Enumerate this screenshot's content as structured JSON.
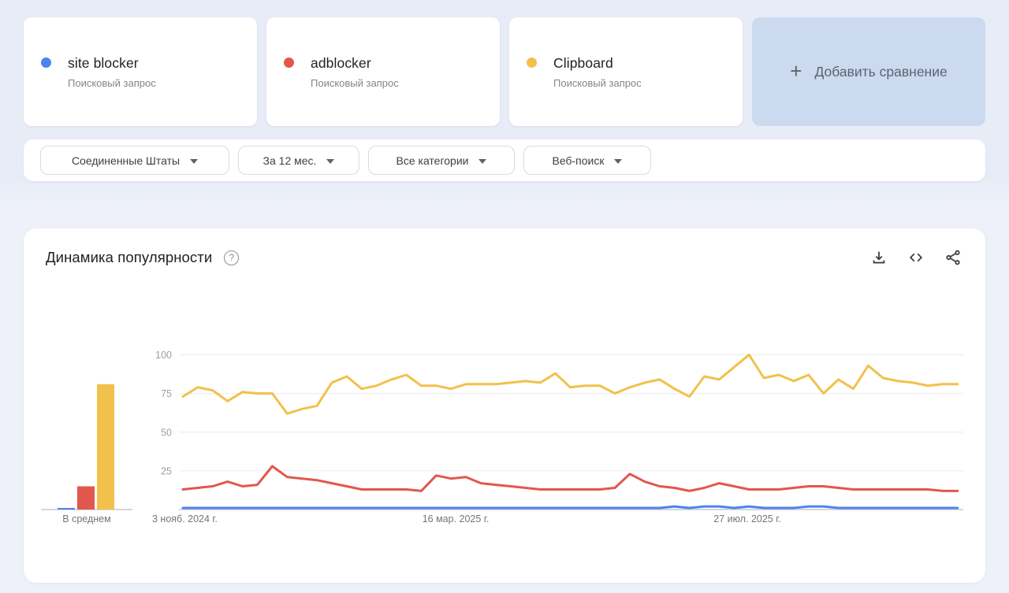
{
  "colors": {
    "blue": "#4c84ee",
    "red": "#e2574d",
    "yellow": "#f2c14b",
    "hero_bg": "#e7ecf7",
    "page_bg": "#eef1f9",
    "add_tile_bg": "#cbdaef",
    "gridline": "#e8eaed",
    "axis": "#c6c9ce",
    "tick_text": "#9aa0a6",
    "label_text": "#757575"
  },
  "terms": [
    {
      "label": "site blocker",
      "type": "Поисковый запрос",
      "color": "#4c84ee"
    },
    {
      "label": "adblocker",
      "type": "Поисковый запрос",
      "color": "#e2574d"
    },
    {
      "label": "Clipboard",
      "type": "Поисковый запрос",
      "color": "#f2c14b"
    }
  ],
  "add_comparison": {
    "plus": "+",
    "label": "Добавить сравнение"
  },
  "filters": [
    {
      "label": "Соединенные Штаты"
    },
    {
      "label": "За 12 мес."
    },
    {
      "label": "Все категории"
    },
    {
      "label": "Веб-поиск"
    }
  ],
  "chart_section": {
    "title": "Динамика популярности",
    "help": "?",
    "icons": [
      "download-icon",
      "embed-icon",
      "share-icon"
    ]
  },
  "chart_data": {
    "type": "line",
    "title": "Динамика популярности",
    "ylim": [
      0,
      100
    ],
    "y_ticks": [
      100,
      75,
      50,
      25
    ],
    "x_tick_labels": [
      "3 нояб. 2024 г.",
      "16 мар. 2025 г.",
      "27 июл. 2025 г."
    ],
    "avg_label": "В среднем",
    "avg_chart": {
      "note": "bar chart of averages next to line chart"
    },
    "series": [
      {
        "name": "site blocker",
        "color": "#4c84ee",
        "average": 1,
        "values": [
          1,
          1,
          1,
          1,
          1,
          1,
          1,
          1,
          1,
          1,
          1,
          1,
          1,
          1,
          1,
          1,
          1,
          1,
          1,
          1,
          1,
          1,
          1,
          1,
          1,
          1,
          1,
          1,
          1,
          1,
          1,
          1,
          1,
          2,
          1,
          2,
          2,
          1,
          2,
          1,
          1,
          1,
          2,
          2,
          1,
          1,
          1,
          1,
          1,
          1,
          1,
          1,
          1
        ]
      },
      {
        "name": "adblocker",
        "color": "#e2574d",
        "average": 15,
        "values": [
          13,
          14,
          15,
          18,
          15,
          16,
          28,
          21,
          20,
          19,
          17,
          15,
          13,
          13,
          13,
          13,
          12,
          22,
          20,
          21,
          17,
          16,
          15,
          14,
          13,
          13,
          13,
          13,
          13,
          14,
          23,
          18,
          15,
          14,
          12,
          14,
          17,
          15,
          13,
          13,
          13,
          14,
          15,
          15,
          14,
          13,
          13,
          13,
          13,
          13,
          13,
          12,
          12
        ]
      },
      {
        "name": "Clipboard",
        "color": "#f2c14b",
        "average": 81,
        "values": [
          73,
          79,
          77,
          70,
          76,
          75,
          75,
          62,
          65,
          67,
          82,
          86,
          78,
          80,
          84,
          87,
          80,
          80,
          78,
          81,
          81,
          81,
          82,
          83,
          82,
          88,
          79,
          80,
          80,
          75,
          79,
          82,
          84,
          78,
          73,
          86,
          84,
          92,
          100,
          85,
          87,
          83,
          87,
          75,
          84,
          78,
          93,
          85,
          83,
          82,
          80,
          81,
          81
        ]
      }
    ]
  }
}
